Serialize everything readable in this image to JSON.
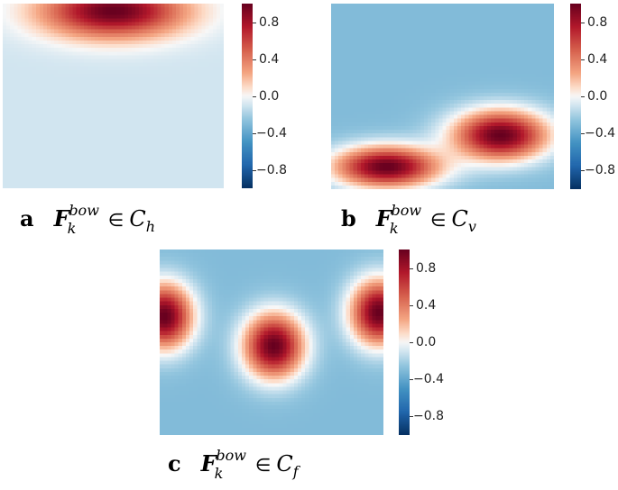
{
  "chart_data": [
    {
      "type": "heatmap",
      "panel_label": "a",
      "caption": {
        "symbol": "F",
        "subscript": "k",
        "superscript": "bow",
        "relation": "∈",
        "set": "C",
        "set_subscript": "h"
      },
      "colormap": "RdBu_r",
      "vmin": -1.0,
      "vmax": 1.0,
      "colorbar_ticks": [
        "0.8",
        "0.4",
        "0.0",
        "−0.4",
        "−0.8"
      ],
      "colorbar_tick_values": [
        0.8,
        0.4,
        0.0,
        -0.4,
        -0.8
      ],
      "background_value": -0.1,
      "blobs": [
        {
          "cx": 0.5,
          "cy": 0.04,
          "rx": 0.4,
          "ry": 0.18,
          "peak": 1.0
        }
      ]
    },
    {
      "type": "heatmap",
      "panel_label": "b",
      "caption": {
        "symbol": "F",
        "subscript": "k",
        "superscript": "bow",
        "relation": "∈",
        "set": "C",
        "set_subscript": "v"
      },
      "colormap": "RdBu_r",
      "vmin": -1.0,
      "vmax": 1.0,
      "colorbar_ticks": [
        "0.8",
        "0.4",
        "0.0",
        "−0.4",
        "−0.8"
      ],
      "colorbar_tick_values": [
        0.8,
        0.4,
        0.0,
        -0.4,
        -0.8
      ],
      "background_value": -0.3,
      "blobs": [
        {
          "cx": 0.25,
          "cy": 0.88,
          "rx": 0.3,
          "ry": 0.14,
          "peak": 1.0
        },
        {
          "cx": 0.76,
          "cy": 0.71,
          "rx": 0.27,
          "ry": 0.17,
          "peak": 1.0
        }
      ]
    },
    {
      "type": "heatmap",
      "panel_label": "c",
      "caption": {
        "symbol": "F",
        "subscript": "k",
        "superscript": "bow",
        "relation": "∈",
        "set": "C",
        "set_subscript": "f"
      },
      "colormap": "RdBu_r",
      "vmin": -1.0,
      "vmax": 1.0,
      "colorbar_ticks": [
        "0.8",
        "0.4",
        "0.0",
        "−0.4",
        "−0.8"
      ],
      "colorbar_tick_values": [
        0.8,
        0.4,
        0.0,
        -0.4,
        -0.8
      ],
      "background_value": -0.3,
      "blobs": [
        {
          "cx": 0.02,
          "cy": 0.36,
          "rx": 0.16,
          "ry": 0.22,
          "peak": 1.0
        },
        {
          "cx": 0.51,
          "cy": 0.52,
          "rx": 0.17,
          "ry": 0.22,
          "peak": 1.0
        },
        {
          "cx": 0.98,
          "cy": 0.34,
          "rx": 0.16,
          "ry": 0.22,
          "peak": 1.0
        }
      ]
    }
  ]
}
